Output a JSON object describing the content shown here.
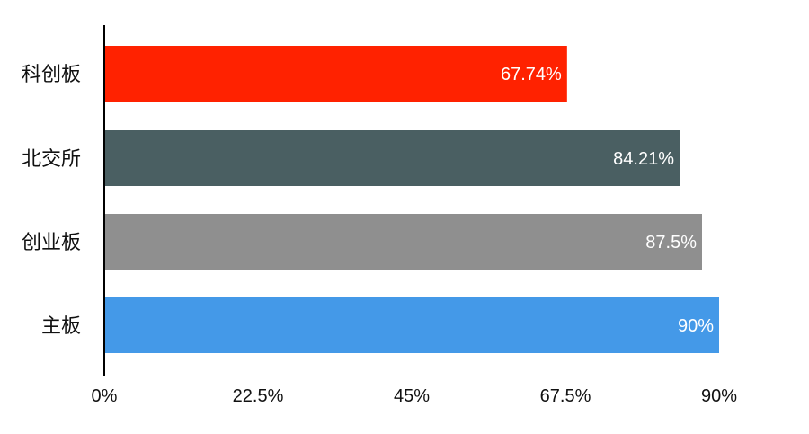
{
  "chart_data": {
    "type": "bar",
    "orientation": "horizontal",
    "categories": [
      "科创板",
      "北交所",
      "创业板",
      "主板"
    ],
    "values": [
      67.74,
      84.21,
      87.5,
      90
    ],
    "data_labels": [
      "67.74%",
      "84.21%",
      "87.5%",
      "90%"
    ],
    "colors": [
      "#ff2200",
      "#4a5f62",
      "#8f8f8f",
      "#4499e8"
    ],
    "x_ticks": [
      "0%",
      "22.5%",
      "45%",
      "67.5%",
      "90%"
    ],
    "x_tick_values": [
      0,
      22.5,
      45,
      67.5,
      90
    ],
    "xlim": [
      0,
      90
    ],
    "grid": false,
    "legend": "none"
  }
}
